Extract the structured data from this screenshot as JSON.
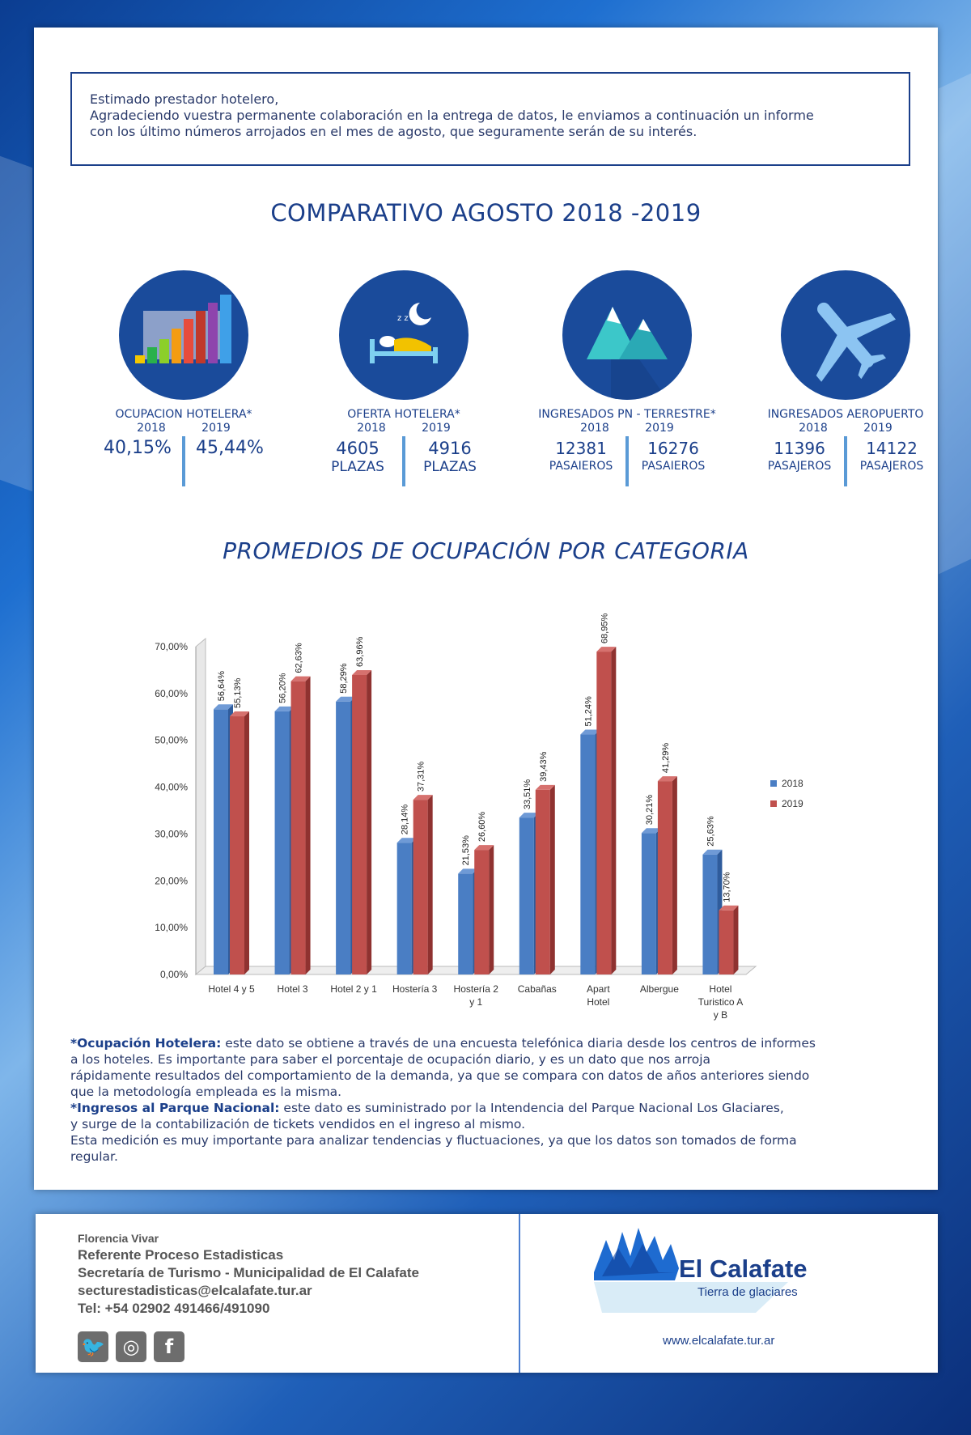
{
  "intro": {
    "line1": "Estimado prestador hotelero,",
    "line2": "Agradeciendo vuestra permanente colaboración en la entrega de datos, le enviamos a continuación un informe",
    "line3": "con los último números arrojados en el mes de agosto, que seguramente serán de su interés."
  },
  "comparativo_title": "COMPARATIVO AGOSTO 2018 -2019",
  "stats": [
    {
      "label": "OCUPACION HOTELERA*",
      "y1": "2018",
      "y2": "2019",
      "v1": "40,15%",
      "v2": "45,44%",
      "u1": "",
      "u2": "",
      "icon": "bar-chart-icon"
    },
    {
      "label": "OFERTA HOTELERA*",
      "y1": "2018",
      "y2": "2019",
      "v1": "4605",
      "v2": "4916",
      "u1": "PLAZAS",
      "u2": "PLAZAS",
      "icon": "bed-icon"
    },
    {
      "label": "INGRESADOS PN - TERRESTRE*",
      "y1": "2018",
      "y2": "2019",
      "v1": "12381",
      "v2": "16276",
      "u1": "PASAIEROS",
      "u2": "PASAIEROS",
      "icon": "mountains-icon"
    },
    {
      "label": "INGRESADOS AEROPUERTO",
      "y1": "2018",
      "y2": "2019",
      "v1": "11396",
      "v2": "14122",
      "u1": "PASAJEROS",
      "u2": "PASAJEROS",
      "icon": "airplane-icon"
    }
  ],
  "promedios_title": "PROMEDIOS DE OCUPACIÓN POR CATEGORIA",
  "chart_data": {
    "type": "bar",
    "categories": [
      "Hotel 4 y 5",
      "Hotel 3",
      "Hotel 2 y 1",
      "Hostería 3",
      "Hostería 2 y 1",
      "Cabañas",
      "Apart Hotel",
      "Albergue",
      "Hotel Turistico A y B"
    ],
    "category_lines": [
      [
        "Hotel 4 y 5"
      ],
      [
        "Hotel 3"
      ],
      [
        "Hotel 2 y 1"
      ],
      [
        "Hostería 3"
      ],
      [
        "Hostería 2",
        "y 1"
      ],
      [
        "Cabañas"
      ],
      [
        "Apart",
        "Hotel"
      ],
      [
        "Albergue"
      ],
      [
        "Hotel",
        "Turistico A",
        "y B"
      ]
    ],
    "series": [
      {
        "name": "2018",
        "color": "#4a7ec4",
        "values": [
          56.64,
          56.2,
          58.29,
          28.14,
          21.53,
          33.51,
          51.24,
          30.21,
          25.63
        ],
        "labels": [
          "56,64%",
          "56,20%",
          "58,29%",
          "28,14%",
          "21,53%",
          "33,51%",
          "51,24%",
          "30,21%",
          "25,63%"
        ]
      },
      {
        "name": "2019",
        "color": "#c0504d",
        "values": [
          55.13,
          62.63,
          63.96,
          37.31,
          26.6,
          39.43,
          68.95,
          41.29,
          13.7
        ],
        "labels": [
          "55,13%",
          "62,63%",
          "63,96%",
          "37,31%",
          "26,60%",
          "39,43%",
          "68,95%",
          "41,29%",
          "13,70%"
        ]
      }
    ],
    "yticks": [
      "0,00%",
      "10,00%",
      "20,00%",
      "30,00%",
      "40,00%",
      "50,00%",
      "60,00%",
      "70,00%"
    ],
    "ylim": [
      0,
      70
    ],
    "legend": "right",
    "grid": false
  },
  "notes": {
    "n1_bold": "*Ocupación Hotelera:",
    "n1_a": " este dato se obtiene a través de una encuesta telefónica diaria desde los centros de informes",
    "n1_b": "a los hoteles. Es importante para saber el porcentaje de ocupación diario, y es un dato que nos arroja",
    "n1_c": "rápidamente resultados del comportamiento de la demanda, ya que se compara con datos de años anteriores siendo",
    "n1_d": "que la metodología empleada es la misma.",
    "n2_bold": "*Ingresos al Parque Nacional:",
    "n2_a": " este dato es suministrado por la Intendencia del Parque Nacional Los Glaciares,",
    "n2_b": "y surge de la contabilización de tickets vendidos en el ingreso al mismo.",
    "n2_c": "Esta medición es muy importante para analizar tendencias y fluctuaciones, ya que los datos son tomados de forma",
    "n2_d": "regular."
  },
  "footer": {
    "name": "Florencia Vivar",
    "role": "Referente Proceso Estadisticas",
    "org": "Secretaría de Turismo - Municipalidad de El Calafate",
    "email": "secturestadisticas@elcalafate.tur.ar",
    "tel": "Tel: +54 02902 491466/491090",
    "logo_title": "El Calafate",
    "logo_sub": "Tierra de glaciares",
    "website": "www.elcalafate.tur.ar",
    "social": [
      "twitter-icon",
      "instagram-icon",
      "facebook-icon"
    ]
  }
}
